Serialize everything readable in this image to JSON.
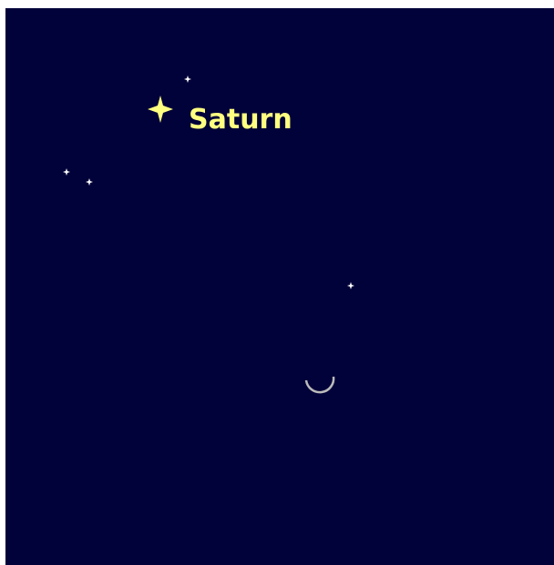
{
  "labels": {
    "planet": "Saturn"
  }
}
